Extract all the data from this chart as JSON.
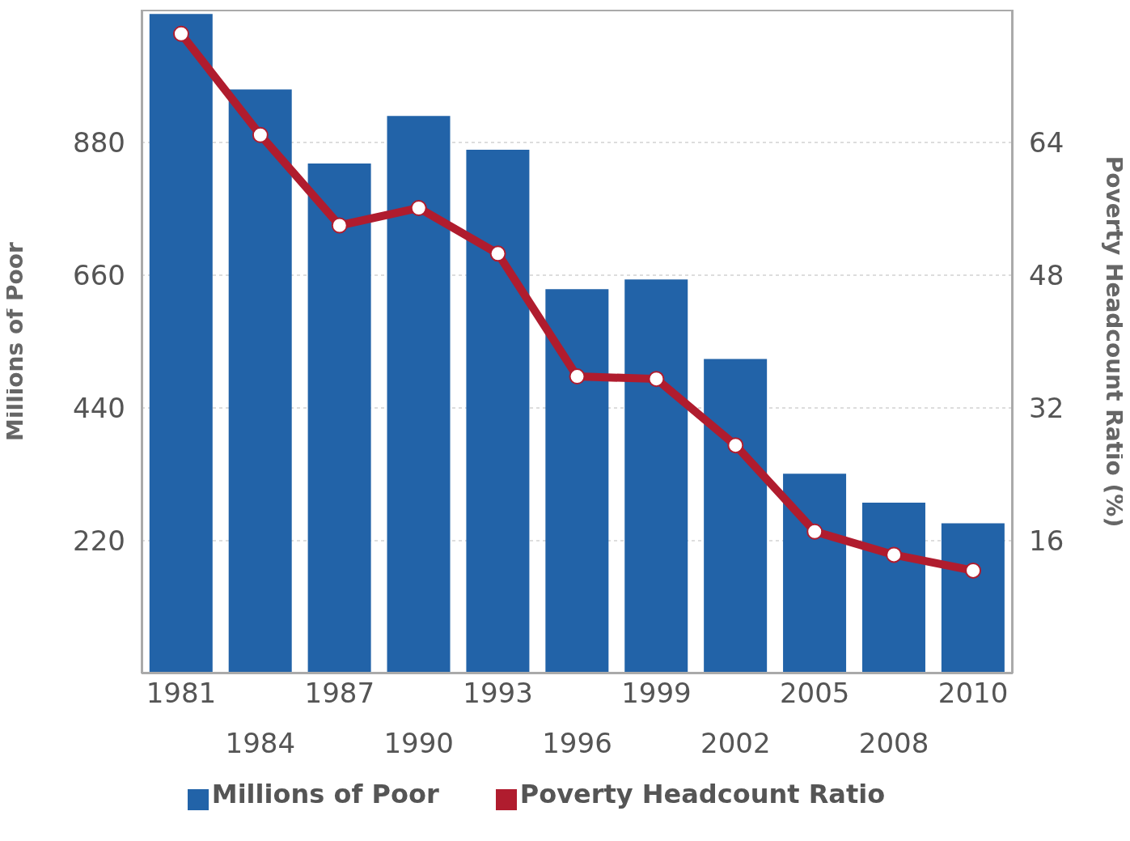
{
  "chart_data": {
    "type": "bar",
    "ylabel": "Millions of Poor",
    "y2label": "Poverty Headcount Ratio (%)",
    "categories": [
      "1981",
      "1984",
      "1987",
      "1990",
      "1993",
      "1996",
      "1999",
      "2002",
      "2005",
      "2008",
      "2010"
    ],
    "series": [
      {
        "name": "Millions of Poor",
        "color": "#2263a8",
        "values": [
          1093,
          968,
          845,
          924,
          868,
          637,
          653,
          521,
          331,
          283,
          249
        ]
      },
      {
        "name": "Poverty Headcount Ratio",
        "type": "line",
        "axis": "y2",
        "color": "#b01c2e",
        "marker": "circle",
        "line_style": "solid",
        "values": [
          77.1,
          64.9,
          54.0,
          56.1,
          50.6,
          35.8,
          35.5,
          27.5,
          17.1,
          14.3,
          12.4
        ]
      }
    ],
    "ylim": [
      0,
      1100
    ],
    "yticks": [
      220,
      440,
      660,
      880
    ],
    "y2lim": [
      0,
      80
    ],
    "y2ticks": [
      16,
      32,
      48,
      64
    ],
    "grid": "y",
    "legend": "bottom"
  }
}
